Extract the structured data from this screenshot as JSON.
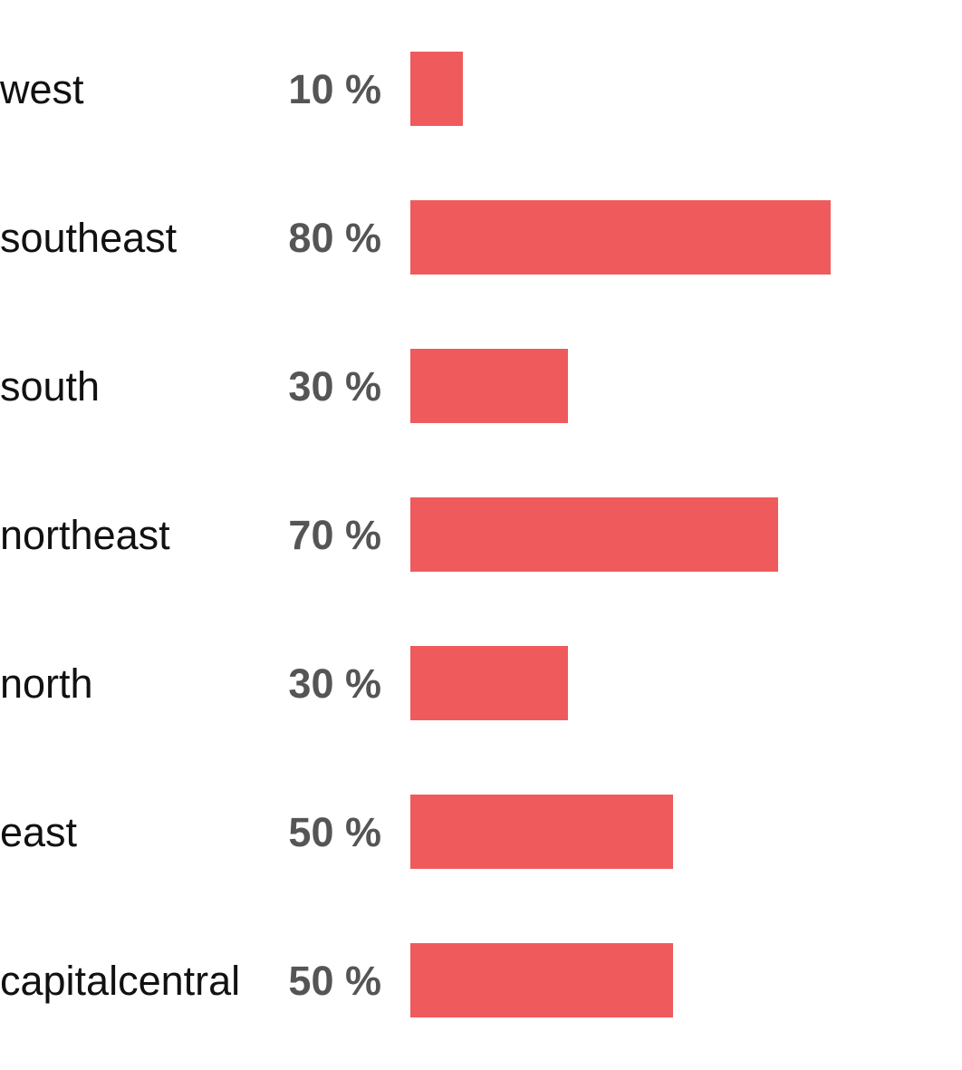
{
  "colors": {
    "bar": "#ef5b5c",
    "value_text": "#555555",
    "category_text": "#111111",
    "background": "#ffffff"
  },
  "chart_data": {
    "type": "bar",
    "orientation": "horizontal",
    "title": "",
    "xlabel": "",
    "ylabel": "",
    "categories": [
      "west",
      "southeast",
      "south",
      "northeast",
      "north",
      "east",
      "capitalcentral"
    ],
    "values": [
      10,
      80,
      30,
      70,
      30,
      50,
      50
    ],
    "value_labels": [
      "10 %",
      "80 %",
      "30 %",
      "70 %",
      "30 %",
      "50 %",
      "50 %"
    ],
    "unit": "%",
    "xlim": [
      0,
      100
    ],
    "grid": false,
    "legend": "none"
  }
}
